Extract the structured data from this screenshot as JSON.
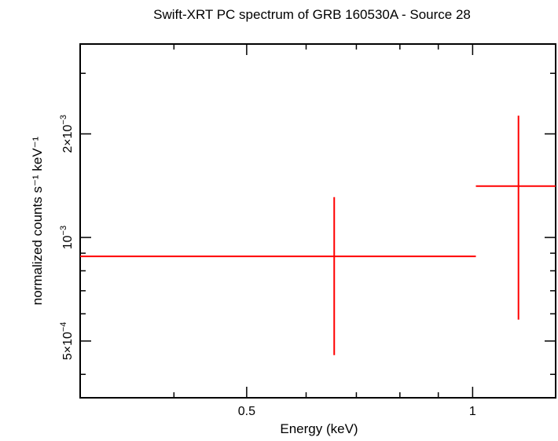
{
  "chart_data": {
    "type": "scatter",
    "title": "Swift-XRT PC spectrum of GRB 160530A - Source 28",
    "xlabel": "Energy (keV)",
    "ylabel": "normalized counts s⁻¹ keV⁻¹",
    "x_scale": "log",
    "y_scale": "log",
    "xlim": [
      0.3,
      1.29
    ],
    "ylim": [
      0.000342,
      0.00365
    ],
    "x_tick_labels": [
      {
        "value": 0.5,
        "label": "0.5"
      },
      {
        "value": 1,
        "label": "1"
      }
    ],
    "y_tick_labels": [
      {
        "value": 0.0005,
        "mant": "5×10",
        "exp": "−4"
      },
      {
        "value": 0.001,
        "mant": "10",
        "exp": "−3"
      },
      {
        "value": 0.002,
        "mant": "2×10",
        "exp": "−3"
      }
    ],
    "grid": false,
    "series": [
      {
        "color": "#ff0000",
        "points": [
          {
            "x": 0.654,
            "xlo": 0.3,
            "xhi": 1.01,
            "y": 0.000881,
            "ylo": 0.000455,
            "yhi": 0.00131
          },
          {
            "x": 1.151,
            "xlo": 1.01,
            "xhi": 1.29,
            "y": 0.00141,
            "ylo": 0.000577,
            "yhi": 0.00226
          }
        ]
      }
    ]
  }
}
